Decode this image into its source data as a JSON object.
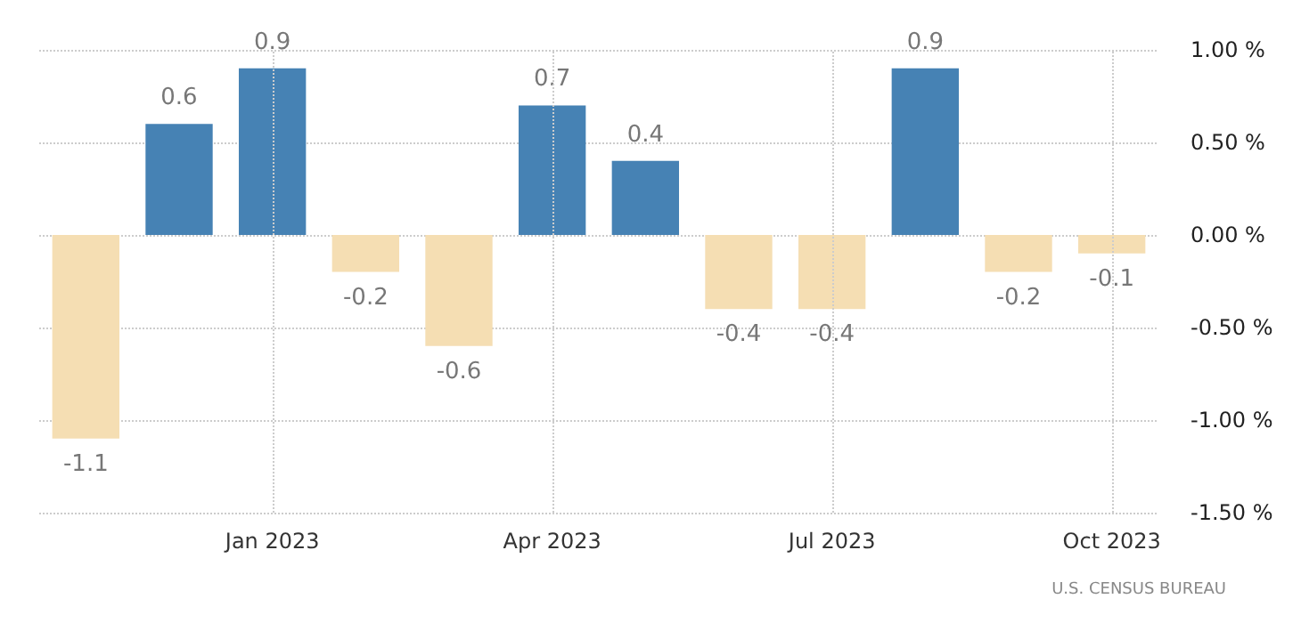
{
  "chart_data": {
    "type": "bar",
    "categories": [
      null,
      null,
      "Jan 2023",
      null,
      null,
      "Apr 2023",
      null,
      null,
      "Jul 2023",
      null,
      null,
      "Oct 2023"
    ],
    "values": [
      -1.1,
      0.6,
      0.9,
      -0.2,
      -0.6,
      0.7,
      0.4,
      -0.4,
      -0.4,
      0.9,
      -0.2,
      -0.1
    ],
    "colors": [
      "#f5deb3",
      "#4682b4",
      "#4682b4",
      "#f5deb3",
      "#f5deb3",
      "#4682b4",
      "#4682b4",
      "#f5deb3",
      "#f5deb3",
      "#4682b4",
      "#f5deb3",
      "#f5deb3"
    ],
    "ylim": [
      -1.5,
      1.0
    ],
    "yticks": [
      {
        "value": -1.5,
        "label": "-1.50 %"
      },
      {
        "value": -1.0,
        "label": "-1.00 %"
      },
      {
        "value": -0.5,
        "label": "-0.50 %"
      },
      {
        "value": 0,
        "label": "0.00 %"
      },
      {
        "value": 0.5,
        "label": "0.50 %"
      },
      {
        "value": 1.0,
        "label": "1.00 %"
      }
    ],
    "data_labels": true,
    "grid": true,
    "annotations": [
      "U.S. CENSUS BUREAU"
    ]
  }
}
